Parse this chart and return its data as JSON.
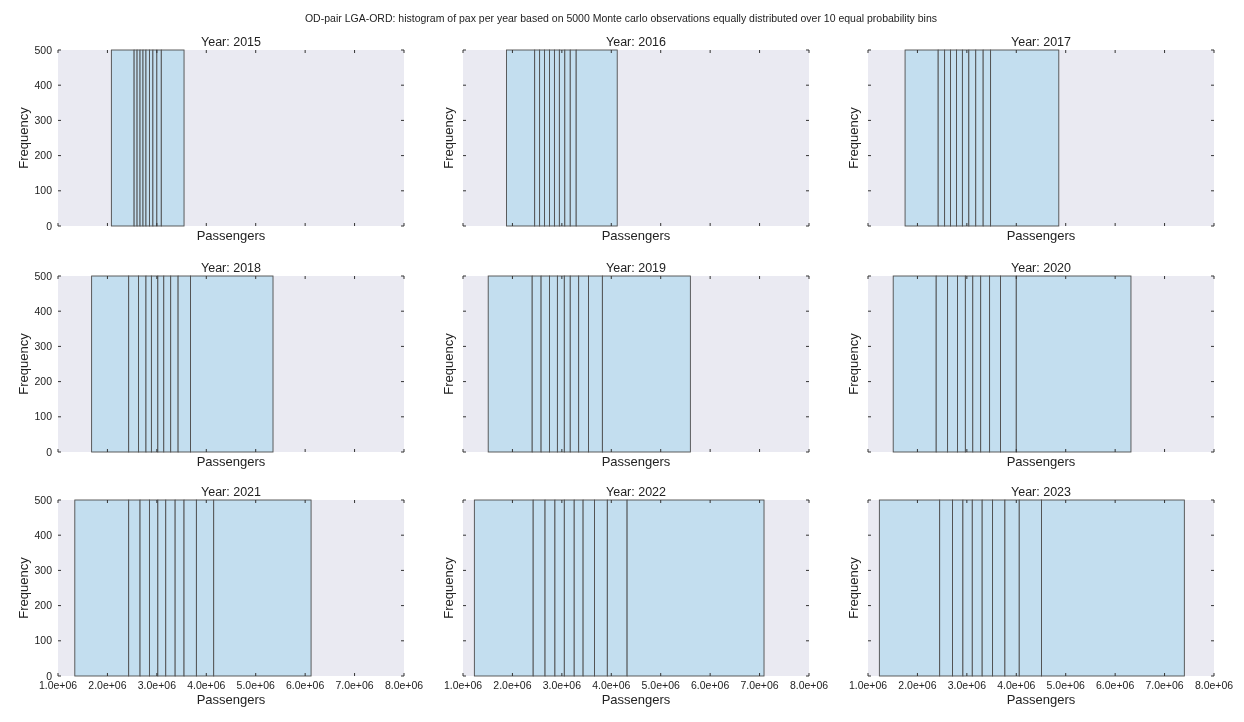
{
  "chart_data": [
    {
      "type": "histogram",
      "title": "Year: 2015",
      "xlabel": "Passengers",
      "ylabel": "Frequency",
      "annotations": [
        "OD-pair LGA-ORD: histogram of pax per year based on 5000 Monte carlo observations equally distributed over 10 equal probability bins"
      ],
      "bins": [
        2080000,
        2540000,
        2600000,
        2660000,
        2720000,
        2780000,
        2850000,
        2920000,
        3000000,
        3090000,
        3550000
      ],
      "values": [
        500,
        500,
        500,
        500,
        500,
        500,
        500,
        500,
        500,
        500
      ],
      "color": "#c3deef",
      "xlim": [
        1000000,
        8000000
      ],
      "xticks": [
        {
          "value": 1000000,
          "label": null
        },
        {
          "value": 2000000,
          "label": null
        },
        {
          "value": 3000000,
          "label": null
        },
        {
          "value": 4000000,
          "label": null
        },
        {
          "value": 5000000,
          "label": null
        },
        {
          "value": 6000000,
          "label": null
        },
        {
          "value": 7000000,
          "label": null
        },
        {
          "value": 8000000,
          "label": null
        }
      ],
      "ylim": [
        0,
        500
      ],
      "yticks": [
        0,
        100,
        200,
        300,
        400,
        500
      ],
      "tick_labels": "y"
    },
    {
      "type": "histogram",
      "title": "Year: 2016",
      "xlabel": "Passengers",
      "ylabel": "Frequency",
      "bins": [
        1880000,
        2450000,
        2550000,
        2650000,
        2750000,
        2850000,
        2950000,
        3060000,
        3170000,
        3290000,
        4120000
      ],
      "values": [
        500,
        500,
        500,
        500,
        500,
        500,
        500,
        500,
        500,
        500
      ],
      "color": "#c3deef",
      "xlim": [
        1000000,
        8000000
      ],
      "xticks": [
        {
          "value": 1000000,
          "label": null
        },
        {
          "value": 2000000,
          "label": null
        },
        {
          "value": 3000000,
          "label": null
        },
        {
          "value": 4000000,
          "label": null
        },
        {
          "value": 5000000,
          "label": null
        },
        {
          "value": 6000000,
          "label": null
        },
        {
          "value": 7000000,
          "label": null
        },
        {
          "value": 8000000,
          "label": null
        }
      ],
      "ylim": [
        0,
        500
      ],
      "yticks": [
        {
          "value": 0,
          "label": null
        },
        {
          "value": 100,
          "label": null
        },
        {
          "value": 200,
          "label": null
        },
        {
          "value": 300,
          "label": null
        },
        {
          "value": 400,
          "label": null
        },
        {
          "value": 500,
          "label": null
        }
      ],
      "tick_labels": false
    },
    {
      "type": "histogram",
      "title": "Year: 2017",
      "xlabel": "Passengers",
      "ylabel": "Frequency",
      "bins": [
        1750000,
        2420000,
        2550000,
        2670000,
        2790000,
        2910000,
        3040000,
        3180000,
        3330000,
        3480000,
        4860000
      ],
      "values": [
        500,
        500,
        500,
        500,
        500,
        500,
        500,
        500,
        500,
        500
      ],
      "color": "#c3deef",
      "xlim": [
        1000000,
        8000000
      ],
      "xticks": [
        {
          "value": 1000000,
          "label": null
        },
        {
          "value": 2000000,
          "label": null
        },
        {
          "value": 3000000,
          "label": null
        },
        {
          "value": 4000000,
          "label": null
        },
        {
          "value": 5000000,
          "label": null
        },
        {
          "value": 6000000,
          "label": null
        },
        {
          "value": 7000000,
          "label": null
        },
        {
          "value": 8000000,
          "label": null
        }
      ],
      "ylim": [
        0,
        500
      ],
      "yticks": [
        {
          "value": 0,
          "label": null
        },
        {
          "value": 100,
          "label": null
        },
        {
          "value": 200,
          "label": null
        },
        {
          "value": 300,
          "label": null
        },
        {
          "value": 400,
          "label": null
        },
        {
          "value": 500,
          "label": null
        }
      ],
      "tick_labels": false
    },
    {
      "type": "histogram",
      "title": "Year: 2018",
      "xlabel": "Passengers",
      "ylabel": "Frequency",
      "bins": [
        1680000,
        2430000,
        2630000,
        2780000,
        2890000,
        3020000,
        3140000,
        3280000,
        3430000,
        3680000,
        5350000
      ],
      "values": [
        500,
        500,
        500,
        500,
        500,
        500,
        500,
        500,
        500,
        500
      ],
      "color": "#c3deef",
      "xlim": [
        1000000,
        8000000
      ],
      "xticks": [
        {
          "value": 1000000,
          "label": null
        },
        {
          "value": 2000000,
          "label": null
        },
        {
          "value": 3000000,
          "label": null
        },
        {
          "value": 4000000,
          "label": null
        },
        {
          "value": 5000000,
          "label": null
        },
        {
          "value": 6000000,
          "label": null
        },
        {
          "value": 7000000,
          "label": null
        },
        {
          "value": 8000000,
          "label": null
        }
      ],
      "ylim": [
        0,
        500
      ],
      "yticks": [
        0,
        100,
        200,
        300,
        400,
        500
      ],
      "tick_labels": "y"
    },
    {
      "type": "histogram",
      "title": "Year: 2019",
      "xlabel": "Passengers",
      "ylabel": "Frequency",
      "bins": [
        1510000,
        2400000,
        2580000,
        2750000,
        2910000,
        3050000,
        3170000,
        3340000,
        3540000,
        3820000,
        5600000
      ],
      "values": [
        500,
        500,
        500,
        500,
        500,
        500,
        500,
        500,
        500,
        500
      ],
      "color": "#c3deef",
      "xlim": [
        1000000,
        8000000
      ],
      "xticks": [
        {
          "value": 1000000,
          "label": null
        },
        {
          "value": 2000000,
          "label": null
        },
        {
          "value": 3000000,
          "label": null
        },
        {
          "value": 4000000,
          "label": null
        },
        {
          "value": 5000000,
          "label": null
        },
        {
          "value": 6000000,
          "label": null
        },
        {
          "value": 7000000,
          "label": null
        },
        {
          "value": 8000000,
          "label": null
        }
      ],
      "ylim": [
        0,
        500
      ],
      "yticks": [
        {
          "value": 0,
          "label": null
        },
        {
          "value": 100,
          "label": null
        },
        {
          "value": 200,
          "label": null
        },
        {
          "value": 300,
          "label": null
        },
        {
          "value": 400,
          "label": null
        },
        {
          "value": 500,
          "label": null
        }
      ],
      "tick_labels": false
    },
    {
      "type": "histogram",
      "title": "Year: 2020",
      "xlabel": "Passengers",
      "ylabel": "Frequency",
      "bins": [
        1510000,
        2380000,
        2610000,
        2810000,
        2970000,
        3120000,
        3280000,
        3460000,
        3680000,
        4000000,
        6320000
      ],
      "values": [
        500,
        500,
        500,
        500,
        500,
        500,
        500,
        500,
        500,
        500
      ],
      "color": "#c3deef",
      "xlim": [
        1000000,
        8000000
      ],
      "xticks": [
        {
          "value": 1000000,
          "label": null
        },
        {
          "value": 2000000,
          "label": null
        },
        {
          "value": 3000000,
          "label": null
        },
        {
          "value": 4000000,
          "label": null
        },
        {
          "value": 5000000,
          "label": null
        },
        {
          "value": 6000000,
          "label": null
        },
        {
          "value": 7000000,
          "label": null
        },
        {
          "value": 8000000,
          "label": null
        }
      ],
      "ylim": [
        0,
        500
      ],
      "yticks": [
        {
          "value": 0,
          "label": null
        },
        {
          "value": 100,
          "label": null
        },
        {
          "value": 200,
          "label": null
        },
        {
          "value": 300,
          "label": null
        },
        {
          "value": 400,
          "label": null
        },
        {
          "value": 500,
          "label": null
        }
      ],
      "tick_labels": false
    },
    {
      "type": "histogram",
      "title": "Year: 2021",
      "xlabel": "Passengers",
      "ylabel": "Frequency",
      "bins": [
        1340000,
        2430000,
        2660000,
        2850000,
        3020000,
        3180000,
        3370000,
        3550000,
        3800000,
        4150000,
        6120000
      ],
      "values": [
        500,
        500,
        500,
        500,
        500,
        500,
        500,
        500,
        500,
        500
      ],
      "color": "#c3deef",
      "xlim": [
        1000000,
        8000000
      ],
      "xticks": [
        {
          "value": 1000000,
          "label": "1.0e+06"
        },
        {
          "value": 2000000,
          "label": "2.0e+06"
        },
        {
          "value": 3000000,
          "label": "3.0e+06"
        },
        {
          "value": 4000000,
          "label": "4.0e+06"
        },
        {
          "value": 5000000,
          "label": "5.0e+06"
        },
        {
          "value": 6000000,
          "label": "6.0e+06"
        },
        {
          "value": 7000000,
          "label": "7.0e+06"
        },
        {
          "value": 8000000,
          "label": "8.0e+06"
        }
      ],
      "ylim": [
        0,
        500
      ],
      "yticks": [
        0,
        100,
        200,
        300,
        400,
        500
      ]
    },
    {
      "type": "histogram",
      "title": "Year: 2022",
      "xlabel": "Passengers",
      "ylabel": "Frequency",
      "bins": [
        1230000,
        2420000,
        2660000,
        2860000,
        3050000,
        3250000,
        3430000,
        3660000,
        3920000,
        4320000,
        7090000
      ],
      "values": [
        500,
        500,
        500,
        500,
        500,
        500,
        500,
        500,
        500,
        500
      ],
      "color": "#c3deef",
      "xlim": [
        1000000,
        8000000
      ],
      "xticks": [
        {
          "value": 1000000,
          "label": "1.0e+06"
        },
        {
          "value": 2000000,
          "label": "2.0e+06"
        },
        {
          "value": 3000000,
          "label": "3.0e+06"
        },
        {
          "value": 4000000,
          "label": "4.0e+06"
        },
        {
          "value": 5000000,
          "label": "5.0e+06"
        },
        {
          "value": 6000000,
          "label": "6.0e+06"
        },
        {
          "value": 7000000,
          "label": "7.0e+06"
        },
        {
          "value": 8000000,
          "label": "8.0e+06"
        }
      ],
      "ylim": [
        0,
        500
      ],
      "yticks": [
        {
          "value": 0,
          "label": null
        },
        {
          "value": 100,
          "label": null
        },
        {
          "value": 200,
          "label": null
        },
        {
          "value": 300,
          "label": null
        },
        {
          "value": 400,
          "label": null
        },
        {
          "value": 500,
          "label": null
        }
      ],
      "tick_labels": "x"
    },
    {
      "type": "histogram",
      "title": "Year: 2023",
      "xlabel": "Passengers",
      "ylabel": "Frequency",
      "bins": [
        1230000,
        2450000,
        2710000,
        2920000,
        3110000,
        3310000,
        3520000,
        3770000,
        4060000,
        4510000,
        7400000
      ],
      "values": [
        500,
        500,
        500,
        500,
        500,
        500,
        500,
        500,
        500,
        500
      ],
      "color": "#c3deef",
      "xlim": [
        1000000,
        8000000
      ],
      "xticks": [
        {
          "value": 1000000,
          "label": "1.0e+06"
        },
        {
          "value": 2000000,
          "label": "2.0e+06"
        },
        {
          "value": 3000000,
          "label": "3.0e+06"
        },
        {
          "value": 4000000,
          "label": "4.0e+06"
        },
        {
          "value": 5000000,
          "label": "5.0e+06"
        },
        {
          "value": 6000000,
          "label": "6.0e+06"
        },
        {
          "value": 7000000,
          "label": "7.0e+06"
        },
        {
          "value": 8000000,
          "label": "8.0e+06"
        }
      ],
      "ylim": [
        0,
        500
      ],
      "yticks": [
        {
          "value": 0,
          "label": null
        },
        {
          "value": 100,
          "label": null
        },
        {
          "value": 200,
          "label": null
        },
        {
          "value": 300,
          "label": null
        },
        {
          "value": 400,
          "label": null
        },
        {
          "value": 500,
          "label": null
        }
      ],
      "tick_labels": "x"
    }
  ]
}
